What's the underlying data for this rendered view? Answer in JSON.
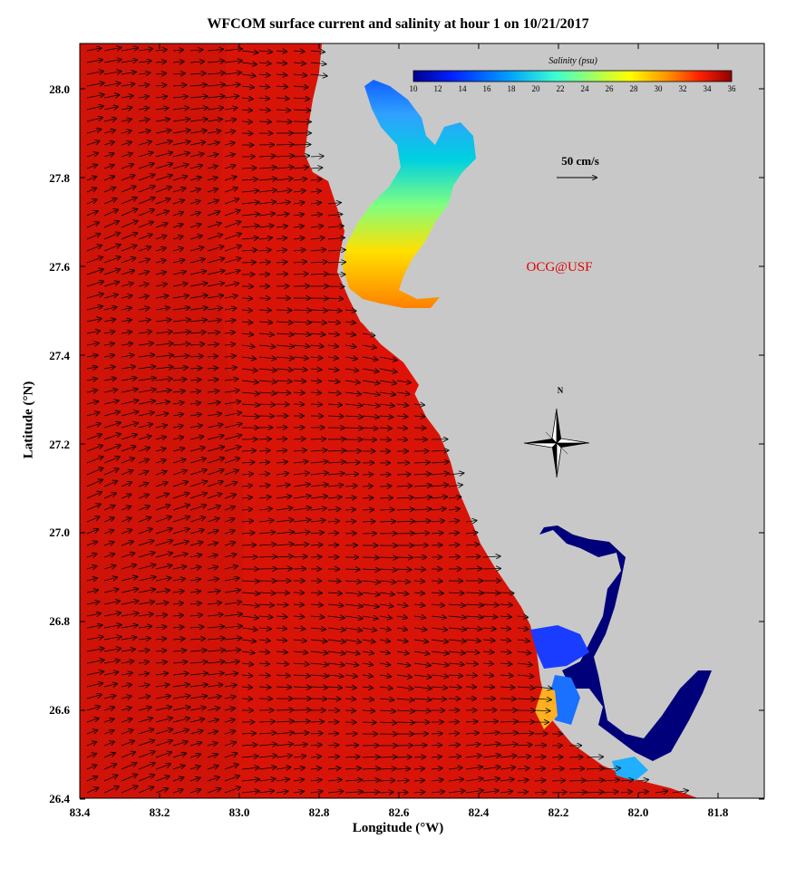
{
  "title": "WFCOM surface current and salinity at hour 1 on 10/21/2017",
  "xlabel": "Longitude (°W)",
  "ylabel": "Latitude (°N)",
  "x_ticks": [
    "83.4",
    "83.2",
    "83.0",
    "82.8",
    "82.6",
    "82.4",
    "82.2",
    "82.0",
    "81.8"
  ],
  "y_ticks": [
    "28.0",
    "27.8",
    "27.6",
    "27.4",
    "27.2",
    "27.0",
    "26.8",
    "26.6",
    "26.4"
  ],
  "colorbar": {
    "label": "Salinity (psu)",
    "ticks": [
      "10",
      "12",
      "14",
      "16",
      "18",
      "20",
      "22",
      "24",
      "26",
      "28",
      "30",
      "32",
      "34",
      "36"
    ]
  },
  "scale_arrow_label": "50 cm/s",
  "credit": "OCG@USF",
  "compass_label": "N",
  "colors": {
    "ocean": "#d81408",
    "land": "#c8c8c8",
    "credit": "#e00000"
  }
}
